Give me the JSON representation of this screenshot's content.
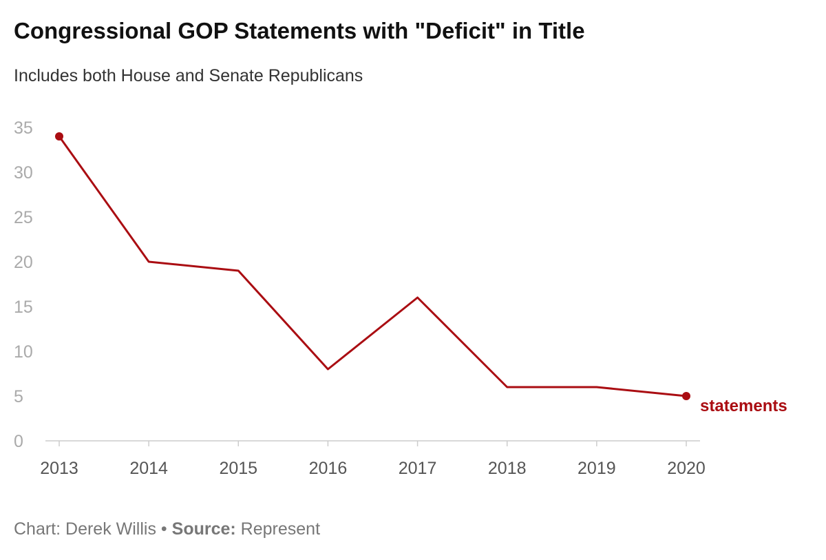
{
  "title": "Congressional GOP Statements with \"Deficit\" in Title",
  "subtitle": "Includes both House and Senate Republicans",
  "footer": {
    "credit": "Chart: Derek Willis",
    "separator": " • ",
    "source_label": "Source:",
    "source_value": " Represent"
  },
  "colors": {
    "series": "#aa0d12",
    "tick_text": "#aaaaaa",
    "x_tick_text": "#555555",
    "axis": "#cccccc"
  },
  "chart_data": {
    "type": "line",
    "title": "Congressional GOP Statements with \"Deficit\" in Title",
    "subtitle": "Includes both House and Senate Republicans",
    "xlabel": "",
    "ylabel": "",
    "x": [
      "2013",
      "2014",
      "2015",
      "2016",
      "2017",
      "2018",
      "2019",
      "2020"
    ],
    "series": [
      {
        "name": "statements",
        "values": [
          34,
          20,
          19,
          8,
          16,
          6,
          6,
          5
        ]
      }
    ],
    "ylim": [
      0,
      35
    ],
    "yticks": [
      0,
      5,
      10,
      15,
      20,
      25,
      30,
      35
    ],
    "grid": false,
    "legend": "end-of-line label"
  }
}
